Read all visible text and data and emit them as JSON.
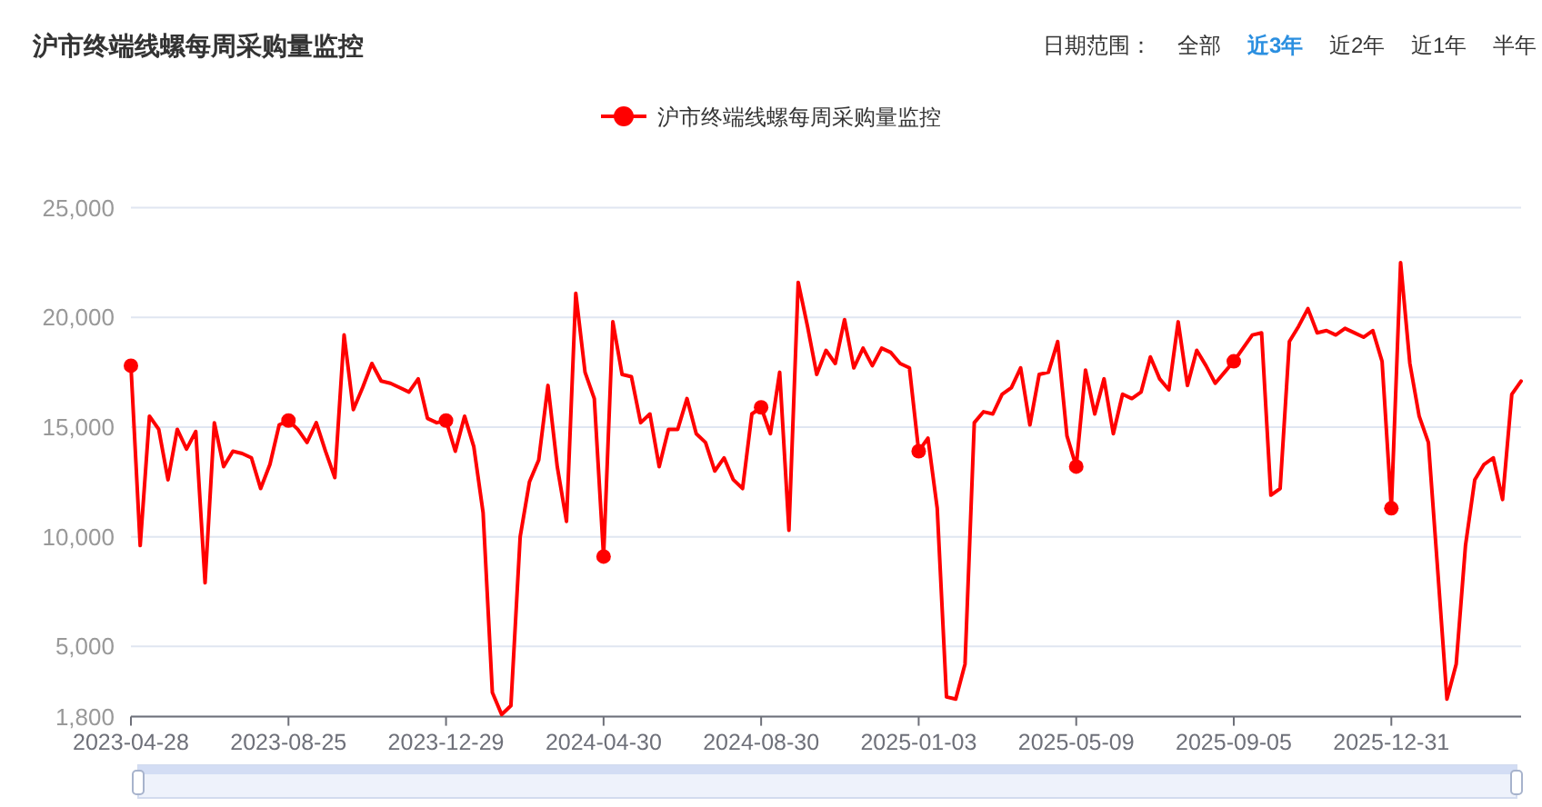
{
  "chart_data": {
    "type": "line",
    "title": "沪市终端线螺每周采购量监控",
    "annotations": [
      "日期范围： 全部 **近3年** 近2年 近1年 半年"
    ],
    "categories": [
      "2023-04-28",
      null,
      null,
      null,
      null,
      null,
      null,
      null,
      null,
      null,
      null,
      null,
      null,
      null,
      null,
      null,
      null,
      "2023-08-25",
      null,
      null,
      null,
      null,
      null,
      null,
      null,
      null,
      null,
      null,
      null,
      null,
      null,
      null,
      null,
      null,
      "2023-12-29",
      null,
      null,
      null,
      null,
      null,
      null,
      null,
      null,
      null,
      null,
      null,
      null,
      null,
      null,
      null,
      null,
      "2024-04-30",
      null,
      null,
      null,
      null,
      null,
      null,
      null,
      null,
      null,
      null,
      null,
      null,
      null,
      null,
      null,
      null,
      "2024-08-30",
      null,
      null,
      null,
      null,
      null,
      null,
      null,
      null,
      null,
      null,
      null,
      null,
      null,
      null,
      null,
      null,
      "2025-01-03",
      null,
      null,
      null,
      null,
      null,
      null,
      null,
      null,
      null,
      null,
      null,
      null,
      null,
      null,
      null,
      null,
      "2025-05-09",
      null,
      null,
      null,
      null,
      null,
      null,
      null,
      null,
      null,
      null,
      null,
      null,
      null,
      null,
      null,
      null,
      "2025-09-05",
      null,
      null,
      null,
      null,
      null,
      null,
      null,
      null,
      null,
      null,
      null,
      null,
      null,
      null,
      null,
      null,
      "2025-12-31",
      null,
      null,
      null,
      null,
      null,
      null,
      null,
      null,
      null,
      null,
      null,
      null,
      null,
      null
    ],
    "series": [
      {
        "name": "沪市终端线螺每周采购量监控",
        "color": "#ff0000",
        "marker": "none",
        "values": [
          17800,
          9600,
          15500,
          14900,
          12600,
          14900,
          14000,
          14800,
          7900,
          15200,
          13200,
          13900,
          13800,
          13600,
          12200,
          13300,
          15100,
          15300,
          14900,
          14300,
          15200,
          13900,
          12700,
          19200,
          15800,
          16800,
          17900,
          17100,
          17000,
          16800,
          16600,
          17200,
          15400,
          15200,
          15300,
          13900,
          15500,
          14100,
          11100,
          2900,
          1900,
          2300,
          10000,
          12500,
          13500,
          16900,
          13200,
          10700,
          21100,
          17500,
          16300,
          9100,
          19800,
          17400,
          17300,
          15200,
          15600,
          13200,
          14900,
          14900,
          16300,
          14700,
          14300,
          13000,
          13600,
          12600,
          12200,
          15600,
          15900,
          14700,
          17500,
          10300,
          21600,
          19600,
          17400,
          18500,
          17900,
          19900,
          17700,
          18600,
          17800,
          18600,
          18400,
          17900,
          17700,
          13900,
          14500,
          11300,
          2700,
          2600,
          4200,
          15200,
          15700,
          15600,
          16500,
          16800,
          17700,
          15100,
          17400,
          17500,
          18900,
          14600,
          13200,
          17600,
          15600,
          17200,
          14700,
          16500,
          16300,
          16600,
          18200,
          17200,
          16700,
          19800,
          16900,
          18500,
          17800,
          17000,
          17500,
          18000,
          18600,
          19200,
          19300,
          11900,
          12200,
          18900,
          19600,
          20400,
          19300,
          19400,
          19200,
          19500,
          19300,
          19100,
          19400,
          18000,
          11300,
          22500,
          17900,
          15500,
          14300,
          8500,
          2600,
          4200,
          9600,
          12600,
          13300,
          13600,
          11700,
          16500,
          17100
        ]
      },
      {
        "type": "scatter",
        "color": "#ff0000",
        "values": [
          17800,
          null,
          null,
          null,
          null,
          null,
          null,
          null,
          null,
          null,
          null,
          null,
          null,
          null,
          null,
          null,
          null,
          15300,
          null,
          null,
          null,
          null,
          null,
          null,
          null,
          null,
          null,
          null,
          null,
          null,
          null,
          null,
          null,
          null,
          15300,
          null,
          null,
          null,
          null,
          null,
          null,
          null,
          null,
          null,
          null,
          null,
          null,
          null,
          null,
          null,
          null,
          9100,
          null,
          null,
          null,
          null,
          null,
          null,
          null,
          null,
          null,
          null,
          null,
          null,
          null,
          null,
          null,
          null,
          15900,
          null,
          null,
          null,
          null,
          null,
          null,
          null,
          null,
          null,
          null,
          null,
          null,
          null,
          null,
          null,
          null,
          13900,
          null,
          null,
          null,
          null,
          null,
          null,
          null,
          null,
          null,
          null,
          null,
          null,
          null,
          null,
          null,
          null,
          13200,
          null,
          null,
          null,
          null,
          null,
          null,
          null,
          null,
          null,
          null,
          null,
          null,
          null,
          null,
          null,
          null,
          18000,
          null,
          null,
          null,
          null,
          null,
          null,
          null,
          null,
          null,
          null,
          null,
          null,
          null,
          null,
          null,
          null,
          11300,
          null,
          null,
          null,
          null,
          null,
          null,
          null,
          null,
          null,
          null,
          null,
          null,
          null,
          null
        ]
      }
    ],
    "ylim": [
      1800,
      25000
    ],
    "yticks": [
      {
        "value": 1800,
        "label": "1,800"
      },
      {
        "value": 5000,
        "label": "5,000"
      },
      {
        "value": 10000,
        "label": "10,000"
      },
      {
        "value": 15000,
        "label": "15,000"
      },
      {
        "value": 20000,
        "label": "20,000"
      },
      {
        "value": 25000,
        "label": "25,000"
      }
    ],
    "grid": "y",
    "legend": "top",
    "marker": "circle"
  }
}
